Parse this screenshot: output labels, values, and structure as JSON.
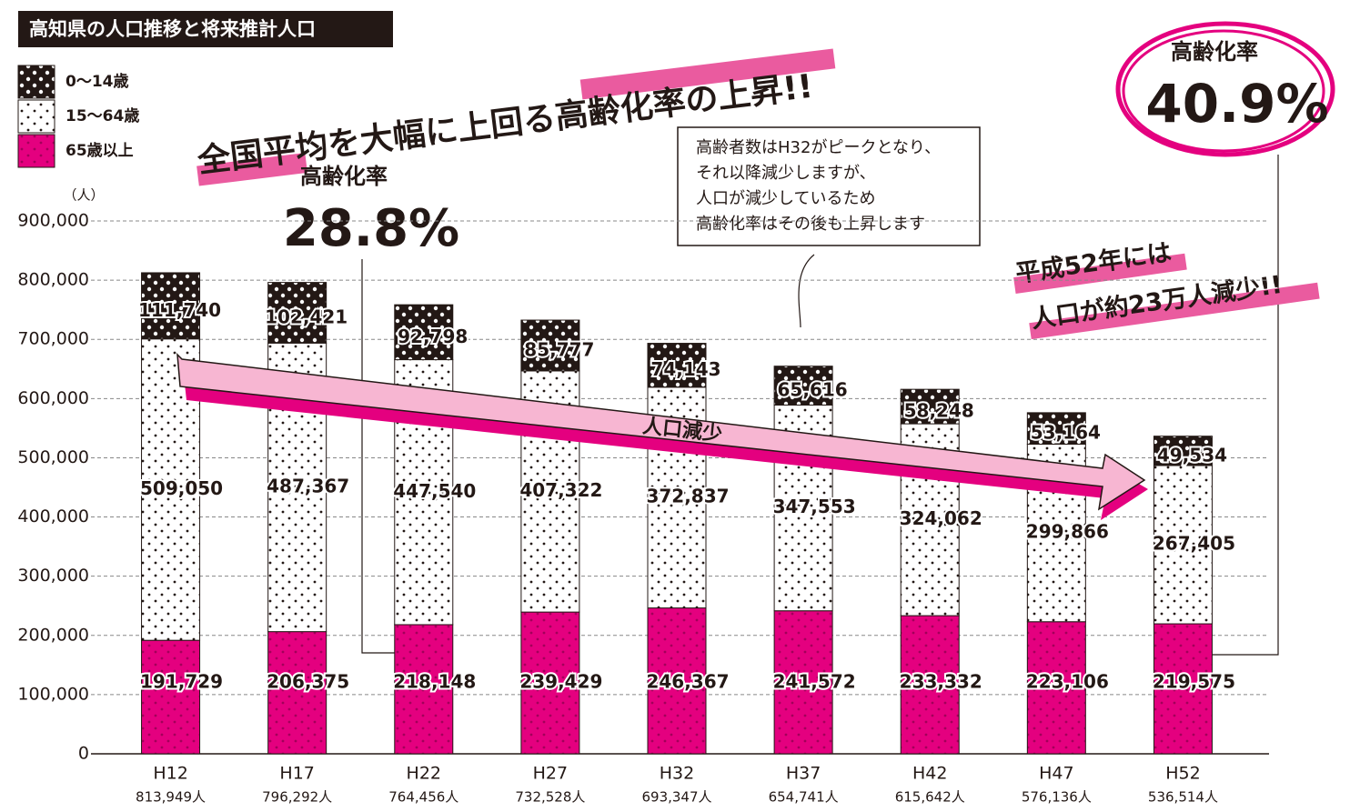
{
  "chart_data": {
    "type": "bar",
    "stacked": true,
    "title": "高知県の人口推移と将来推計人口",
    "headline": "全国平均を大幅に上回る高齢化率の上昇!!",
    "annotations": {
      "left_label": "高齢化率",
      "left_value": "28.8%",
      "right_label": "高齢化率",
      "right_value": "40.9%",
      "note": [
        "高齢者数はH32がピークとなり、",
        "それ以降減少しますが、",
        "人口が減少しているため",
        "高齢化率はその後も上昇します"
      ],
      "callout": [
        "平成52年には",
        "人口が約23万人減少!!"
      ],
      "arrow_label": "人口減少"
    },
    "y_unit": "（人）",
    "categories": [
      "H12",
      "H17",
      "H22",
      "H27",
      "H32",
      "H37",
      "H42",
      "H47",
      "H52"
    ],
    "total_labels": [
      "813,949人",
      "796,292人",
      "764,456人",
      "732,528人",
      "693,347人",
      "654,741人",
      "615,642人",
      "576,136人",
      "536,514人"
    ],
    "series": [
      {
        "name": "0〜14歳",
        "color": "#231815",
        "values": [
          111740,
          102421,
          92798,
          85777,
          74143,
          65616,
          58248,
          53164,
          49534
        ],
        "value_labels": [
          "111,740",
          "102,421",
          "92,798",
          "85,777",
          "74,143",
          "65,616",
          "58,248",
          "53,164",
          "49,534"
        ]
      },
      {
        "name": "15〜64歳",
        "color": "#ffffff",
        "values": [
          509050,
          487367,
          447540,
          407322,
          372837,
          347553,
          324062,
          299866,
          267405
        ],
        "value_labels": [
          "509,050",
          "487,367",
          "447,540",
          "407,322",
          "372,837",
          "347,553",
          "324,062",
          "299,866",
          "267,405"
        ]
      },
      {
        "name": "65歳以上",
        "color": "#e4007f",
        "values": [
          191729,
          206375,
          218148,
          239429,
          246367,
          241572,
          233332,
          223106,
          219575
        ],
        "value_labels": [
          "191,729",
          "206,375",
          "218,148",
          "239,429",
          "246,367",
          "241,572",
          "233,332",
          "223,106",
          "219,575"
        ]
      }
    ],
    "ylim": [
      0,
      900000
    ],
    "yticks": [
      0,
      {
        "value": 100000,
        "label": "100,000"
      },
      {
        "value": 200000,
        "label": "200,000"
      },
      {
        "value": 300000,
        "label": "300,000"
      },
      {
        "value": 400000,
        "label": "400,000"
      },
      {
        "value": 500000,
        "label": "500,000"
      },
      {
        "value": 600000,
        "label": "600,000"
      },
      {
        "value": 700000,
        "label": "700,000"
      },
      {
        "value": 800000,
        "label": "800,000"
      },
      {
        "value": 900000,
        "label": "900,000"
      }
    ],
    "grid": true
  }
}
